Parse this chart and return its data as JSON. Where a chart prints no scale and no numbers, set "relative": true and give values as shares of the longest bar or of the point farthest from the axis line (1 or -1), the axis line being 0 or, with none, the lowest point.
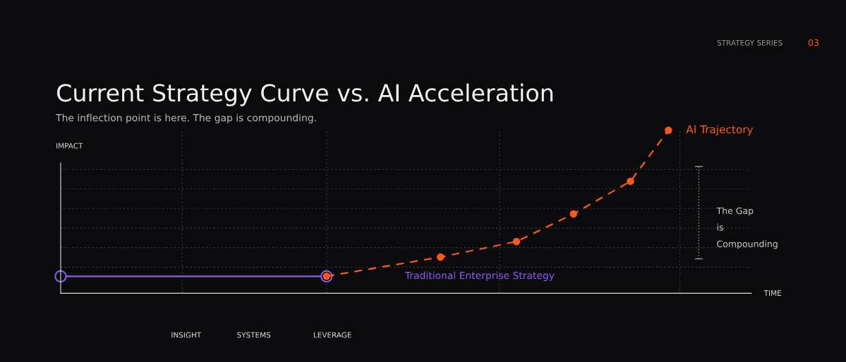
{
  "chart_data": {
    "type": "line",
    "title": "Current Strategy Curve vs. AI Acceleration",
    "subtitle": "The inflection point is here. The gap is compounding.",
    "xlabel": "TIME",
    "ylabel": "IMPACT",
    "relative": true,
    "grid": true,
    "marker": "circle",
    "categories": [
      null,
      null,
      null,
      null,
      null,
      null,
      null,
      null,
      null,
      null,
      null,
      null,
      null,
      null,
      null,
      null,
      null,
      null,
      null,
      null,
      null,
      null,
      null,
      null,
      null,
      null,
      null,
      null,
      null,
      null,
      null,
      null,
      null,
      null,
      null,
      null,
      null
    ],
    "series": [
      {
        "name": "Traditional Enterprise Strategy",
        "color": "#8b5cf6",
        "line_style": "solid",
        "values": [
          0.104,
          null,
          null,
          null,
          null,
          null,
          null,
          null,
          null,
          null,
          null,
          null,
          null,
          null,
          0.104,
          null,
          null,
          null,
          null,
          null,
          null,
          null,
          null,
          null,
          null,
          null,
          null,
          null,
          null,
          null,
          null,
          null,
          null,
          null,
          null,
          null,
          null
        ]
      },
      {
        "name": "AI Trajectory",
        "color": "#ff5a14",
        "line_style": "dashed",
        "values": [
          null,
          null,
          null,
          null,
          null,
          null,
          null,
          null,
          null,
          null,
          null,
          null,
          null,
          null,
          0.104,
          null,
          null,
          null,
          null,
          null,
          0.222,
          null,
          null,
          null,
          0.317,
          null,
          null,
          0.487,
          null,
          null,
          0.687,
          null,
          1,
          null,
          null,
          null,
          null
        ]
      }
    ],
    "annotations": [
      "The Gap\nis\nCompounding",
      "STRATEGY SERIES",
      "03",
      "INSIGHT",
      "SYSTEMS",
      "LEVERAGE"
    ]
  }
}
